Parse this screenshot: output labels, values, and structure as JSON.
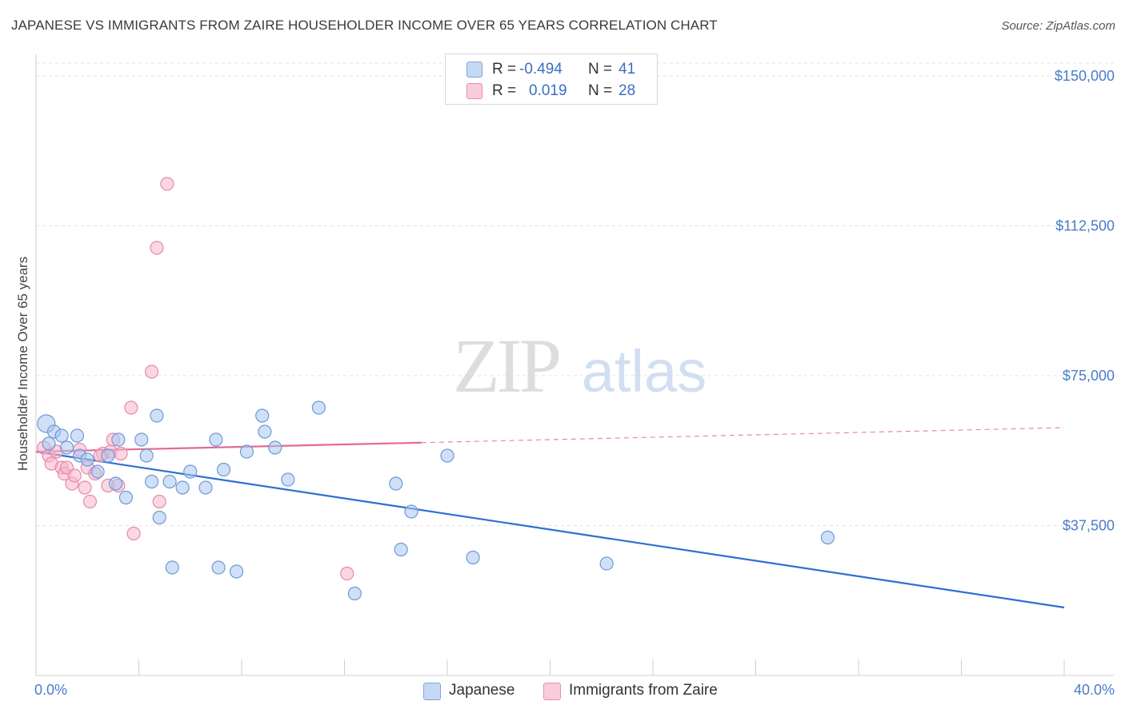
{
  "chart_data": {
    "type": "scatter",
    "title": "JAPANESE VS IMMIGRANTS FROM ZAIRE HOUSEHOLDER INCOME OVER 65 YEARS CORRELATION CHART",
    "source": "Source: ZipAtlas.com",
    "xlabel": "",
    "ylabel": "Householder Income Over 65 years",
    "xlim": [
      0,
      40
    ],
    "ylim": [
      0,
      155000
    ],
    "x_tick_labels": [
      "0.0%",
      "40.0%"
    ],
    "y_ticks": [
      {
        "value": 37500,
        "label": "$37,500"
      },
      {
        "value": 75000,
        "label": "$75,000"
      },
      {
        "value": 112500,
        "label": "$112,500"
      },
      {
        "value": 150000,
        "label": "$150,000"
      }
    ],
    "watermark": {
      "zip": "ZIP",
      "atlas": "atlas"
    },
    "legend_stats": [
      {
        "r_label": "R =",
        "r_value": "-0.494",
        "n_label": "N =",
        "n_value": "41"
      },
      {
        "r_label": "R =",
        "r_value": "0.019",
        "n_label": "N =",
        "n_value": "28"
      }
    ],
    "series": [
      {
        "name": "Japanese",
        "color": "#a9c6ee",
        "stroke": "#6c9ad9",
        "trend_color": "#2f6fd0",
        "trend": {
          "x0": 0,
          "y0": 56000,
          "x1": 40,
          "y1": 17000,
          "dashed_from": null
        },
        "points": [
          [
            0.4,
            63000
          ],
          [
            0.7,
            61000
          ],
          [
            1.0,
            60000
          ],
          [
            1.6,
            60000
          ],
          [
            1.7,
            55000
          ],
          [
            2.0,
            54000
          ],
          [
            2.4,
            51000
          ],
          [
            3.1,
            48000
          ],
          [
            3.2,
            59000
          ],
          [
            3.5,
            44500
          ],
          [
            4.1,
            59000
          ],
          [
            4.3,
            55000
          ],
          [
            4.5,
            48500
          ],
          [
            4.7,
            65000
          ],
          [
            4.8,
            39500
          ],
          [
            5.2,
            48500
          ],
          [
            5.3,
            27000
          ],
          [
            5.7,
            47000
          ],
          [
            6.0,
            51000
          ],
          [
            6.6,
            47000
          ],
          [
            7.0,
            59000
          ],
          [
            7.1,
            27000
          ],
          [
            7.3,
            51500
          ],
          [
            7.8,
            26000
          ],
          [
            8.2,
            56000
          ],
          [
            8.8,
            65000
          ],
          [
            8.9,
            61000
          ],
          [
            9.3,
            57000
          ],
          [
            9.8,
            49000
          ],
          [
            11.0,
            67000
          ],
          [
            12.4,
            20500
          ],
          [
            14.0,
            48000
          ],
          [
            14.2,
            31500
          ],
          [
            14.6,
            41000
          ],
          [
            16.0,
            55000
          ],
          [
            17.0,
            29500
          ],
          [
            22.2,
            28000
          ],
          [
            30.8,
            34500
          ],
          [
            1.2,
            57000
          ],
          [
            2.8,
            55000
          ],
          [
            0.5,
            58000
          ]
        ]
      },
      {
        "name": "Immigrants from Zaire",
        "color": "#f6b6cb",
        "stroke": "#e889a8",
        "trend_color": "#e26a95",
        "trend": {
          "x0": 0,
          "y0": 56000,
          "x1": 40,
          "y1": 62000,
          "dashed_from": 15
        },
        "points": [
          [
            0.3,
            57000
          ],
          [
            0.5,
            55000
          ],
          [
            0.6,
            53000
          ],
          [
            0.8,
            56000
          ],
          [
            1.0,
            52000
          ],
          [
            1.1,
            50500
          ],
          [
            1.2,
            52000
          ],
          [
            1.4,
            48000
          ],
          [
            1.5,
            50000
          ],
          [
            1.7,
            56500
          ],
          [
            1.9,
            47000
          ],
          [
            2.0,
            52000
          ],
          [
            2.1,
            43500
          ],
          [
            2.3,
            50500
          ],
          [
            2.6,
            55500
          ],
          [
            2.8,
            47500
          ],
          [
            2.9,
            56000
          ],
          [
            3.0,
            59000
          ],
          [
            3.2,
            47500
          ],
          [
            3.3,
            55500
          ],
          [
            3.7,
            67000
          ],
          [
            3.8,
            35500
          ],
          [
            4.5,
            76000
          ],
          [
            4.7,
            107000
          ],
          [
            4.8,
            43500
          ],
          [
            5.1,
            123000
          ],
          [
            12.1,
            25500
          ],
          [
            2.5,
            55000
          ]
        ]
      }
    ]
  }
}
